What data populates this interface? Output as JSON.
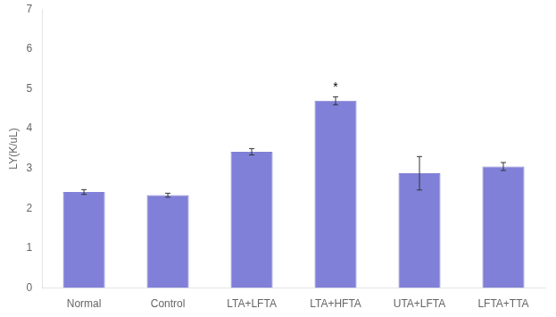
{
  "chart_data": {
    "type": "bar",
    "categories": [
      "Normal",
      "Control",
      "LTA+LFTA",
      "LTA+HFTA",
      "UTA+LFTA",
      "LFTA+TTA"
    ],
    "values": [
      2.41,
      2.33,
      3.42,
      4.7,
      2.88,
      3.05
    ],
    "errors": [
      0.06,
      0.05,
      0.08,
      0.1,
      0.42,
      0.1
    ],
    "color": "#8080d8",
    "ylabel": "LY(K/uL)",
    "ylim": [
      0,
      7
    ],
    "yticks": [
      0,
      1,
      2,
      3,
      4,
      5,
      6,
      7
    ],
    "annotations": [
      {
        "text": "*",
        "category": "LTA+HFTA"
      }
    ],
    "grid": false
  }
}
